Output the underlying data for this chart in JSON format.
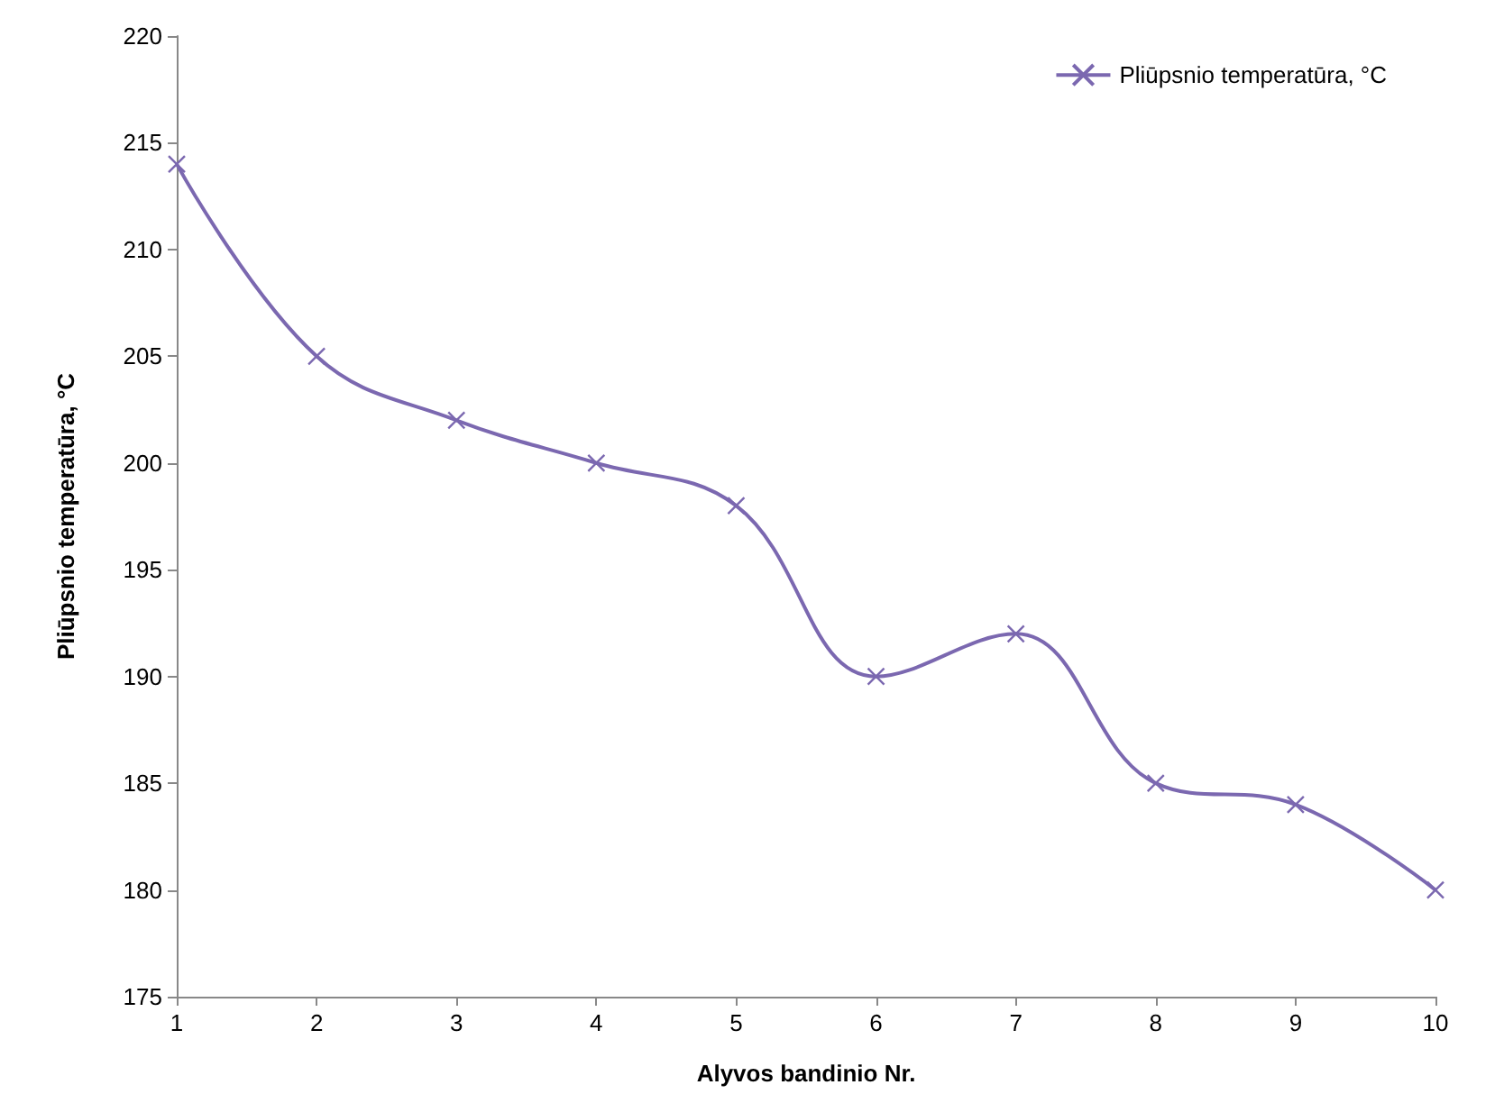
{
  "chart_data": {
    "type": "line",
    "xlabel": "Alyvos bandinio Nr.",
    "ylabel": "Pliūpsnio temperatūra, °C",
    "x": [
      1,
      2,
      3,
      4,
      5,
      6,
      7,
      8,
      9,
      10
    ],
    "series": [
      {
        "name": "Pliūpsnio temperatūra, °C",
        "color": "#7b68b0",
        "values": [
          214,
          205,
          202,
          200,
          198,
          190,
          192,
          185,
          184,
          180
        ]
      }
    ],
    "xlim": [
      1,
      10
    ],
    "xticks": [
      1,
      2,
      3,
      4,
      5,
      6,
      7,
      8,
      9,
      10
    ],
    "ylim": [
      175,
      220
    ],
    "yticks": [
      175,
      180,
      185,
      190,
      195,
      200,
      205,
      210,
      215,
      220
    ],
    "grid": false,
    "legend": "top right",
    "marker": "cross",
    "line_style": "solid"
  }
}
